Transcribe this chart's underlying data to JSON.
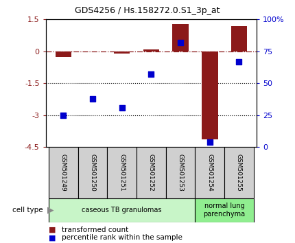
{
  "title": "GDS4256 / Hs.158272.0.S1_3p_at",
  "samples": [
    "GSM501249",
    "GSM501250",
    "GSM501251",
    "GSM501252",
    "GSM501253",
    "GSM501254",
    "GSM501255"
  ],
  "red_bars": [
    -0.28,
    -0.02,
    -0.1,
    0.1,
    1.28,
    -4.15,
    1.18
  ],
  "blue_dots": [
    25,
    38,
    31,
    57,
    82,
    4,
    67
  ],
  "ylim_left": [
    -4.5,
    1.5
  ],
  "ylim_right": [
    0,
    100
  ],
  "dotted_lines": [
    -1.5,
    -3.0
  ],
  "bar_color": "#8B1A1A",
  "dot_color": "#0000CD",
  "bar_width": 0.55,
  "cell_type_groups": [
    {
      "label": "caseous TB granulomas",
      "xmin": -0.5,
      "xmax": 4.5,
      "color": "#c8f5c8"
    },
    {
      "label": "normal lung\nparenchyma",
      "xmin": 4.5,
      "xmax": 6.5,
      "color": "#90ee90"
    }
  ],
  "legend_bar_label": "transformed count",
  "legend_dot_label": "percentile rank within the sample",
  "cell_type_label": "cell type",
  "background_color": "#ffffff",
  "xticklabel_bg": "#d0d0d0"
}
